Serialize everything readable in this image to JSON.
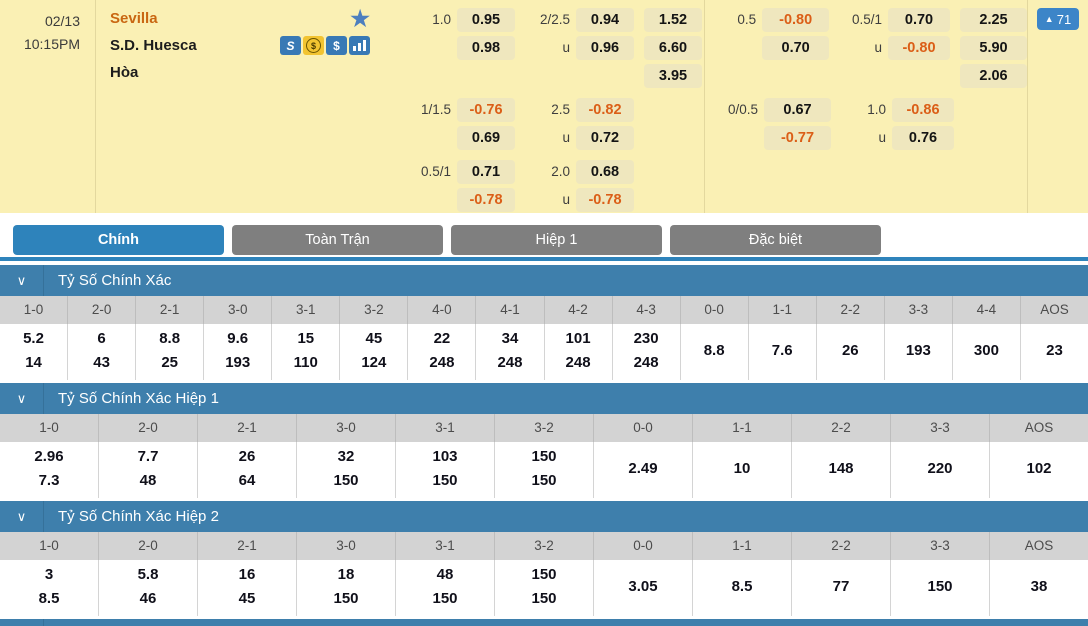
{
  "match": {
    "date": "02/13",
    "time": "10:15PM",
    "home_team": "Sevilla",
    "away_team": "S.D. Huesca",
    "draw_label": "Hòa",
    "badge": {
      "arrow": "▲",
      "count": "71"
    },
    "icons": {
      "favorite_glyph": "★",
      "slip_glyph": "S",
      "exchange_glyph": "$",
      "dollar_glyph": "$"
    }
  },
  "odds_panel": {
    "groups": [
      {
        "name": "full-time",
        "rows": [
          {
            "hdp_label": "1.0",
            "hdp": [
              "0.95",
              "0.98"
            ],
            "ou_label": "2/2.5",
            "ou_prefix": "u",
            "ou": [
              "0.94",
              "0.96"
            ],
            "x12": [
              "1.52",
              "6.60",
              "3.95"
            ]
          },
          {
            "hdp_label": "1/1.5",
            "hdp": [
              "-0.76",
              "0.69"
            ],
            "ou_label": "2.5",
            "ou_prefix": "u",
            "ou": [
              "-0.82",
              "0.72"
            ],
            "x12": []
          },
          {
            "hdp_label": "0.5/1",
            "hdp": [
              "0.71",
              "-0.78"
            ],
            "ou_label": "2.0",
            "ou_prefix": "u",
            "ou": [
              "0.68",
              "-0.78"
            ],
            "x12": []
          }
        ]
      },
      {
        "name": "first-half",
        "rows": [
          {
            "hdp_label": "0.5",
            "hdp": [
              "-0.80",
              "0.70"
            ],
            "ou_label": "0.5/1",
            "ou_prefix": "u",
            "ou": [
              "0.70",
              "-0.80"
            ],
            "x12": [
              "2.25",
              "5.90",
              "2.06"
            ]
          },
          {
            "hdp_label": "0/0.5",
            "hdp": [
              "0.67",
              "-0.77"
            ],
            "ou_label": "1.0",
            "ou_prefix": "u",
            "ou": [
              "-0.86",
              "0.76"
            ],
            "x12": []
          }
        ]
      }
    ]
  },
  "tabs": [
    {
      "label": "Chính",
      "active": true
    },
    {
      "label": "Toàn Trận",
      "active": false
    },
    {
      "label": "Hiệp 1",
      "active": false
    },
    {
      "label": "Đặc biệt",
      "active": false
    }
  ],
  "score_tables": [
    {
      "title": "Tỷ Số Chính Xác",
      "columns": [
        "1-0",
        "2-0",
        "2-1",
        "3-0",
        "3-1",
        "3-2",
        "4-0",
        "4-1",
        "4-2",
        "4-3",
        "0-0",
        "1-1",
        "2-2",
        "3-3",
        "4-4",
        "AOS"
      ],
      "values": [
        [
          "5.2",
          "14"
        ],
        [
          "6",
          "43"
        ],
        [
          "8.8",
          "25"
        ],
        [
          "9.6",
          "193"
        ],
        [
          "15",
          "110"
        ],
        [
          "45",
          "124"
        ],
        [
          "22",
          "248"
        ],
        [
          "34",
          "248"
        ],
        [
          "101",
          "248"
        ],
        [
          "230",
          "248"
        ],
        [
          "8.8"
        ],
        [
          "7.6"
        ],
        [
          "26"
        ],
        [
          "193"
        ],
        [
          "300"
        ],
        [
          "23"
        ]
      ]
    },
    {
      "title": "Tỷ Số Chính Xác Hiệp 1",
      "columns": [
        "1-0",
        "2-0",
        "2-1",
        "3-0",
        "3-1",
        "3-2",
        "0-0",
        "1-1",
        "2-2",
        "3-3",
        "AOS"
      ],
      "values": [
        [
          "2.96",
          "7.3"
        ],
        [
          "7.7",
          "48"
        ],
        [
          "26",
          "64"
        ],
        [
          "32",
          "150"
        ],
        [
          "103",
          "150"
        ],
        [
          "150",
          "150"
        ],
        [
          "2.49"
        ],
        [
          "10"
        ],
        [
          "148"
        ],
        [
          "220"
        ],
        [
          "102"
        ]
      ]
    },
    {
      "title": "Tỷ Số Chính Xác Hiệp 2",
      "columns": [
        "1-0",
        "2-0",
        "2-1",
        "3-0",
        "3-1",
        "3-2",
        "0-0",
        "1-1",
        "2-2",
        "3-3",
        "AOS"
      ],
      "values": [
        [
          "3",
          "8.5"
        ],
        [
          "5.8",
          "46"
        ],
        [
          "16",
          "45"
        ],
        [
          "18",
          "150"
        ],
        [
          "48",
          "150"
        ],
        [
          "150",
          "150"
        ],
        [
          "3.05"
        ],
        [
          "8.5"
        ],
        [
          "77"
        ],
        [
          "150"
        ],
        [
          "38"
        ]
      ]
    }
  ],
  "colors": {
    "panel_bg": "#FAF0B4",
    "odds_box_bg": "#EFE7BE",
    "negative_odds": "#DB5E17",
    "home_team": "#C96712",
    "tab_active": "#2E83BB",
    "inactive_tab": "#7F7F7F",
    "section_header": "#3E7FAC",
    "badge_bg": "#3C85C8",
    "table_header_bg": "#D3D3D3"
  }
}
